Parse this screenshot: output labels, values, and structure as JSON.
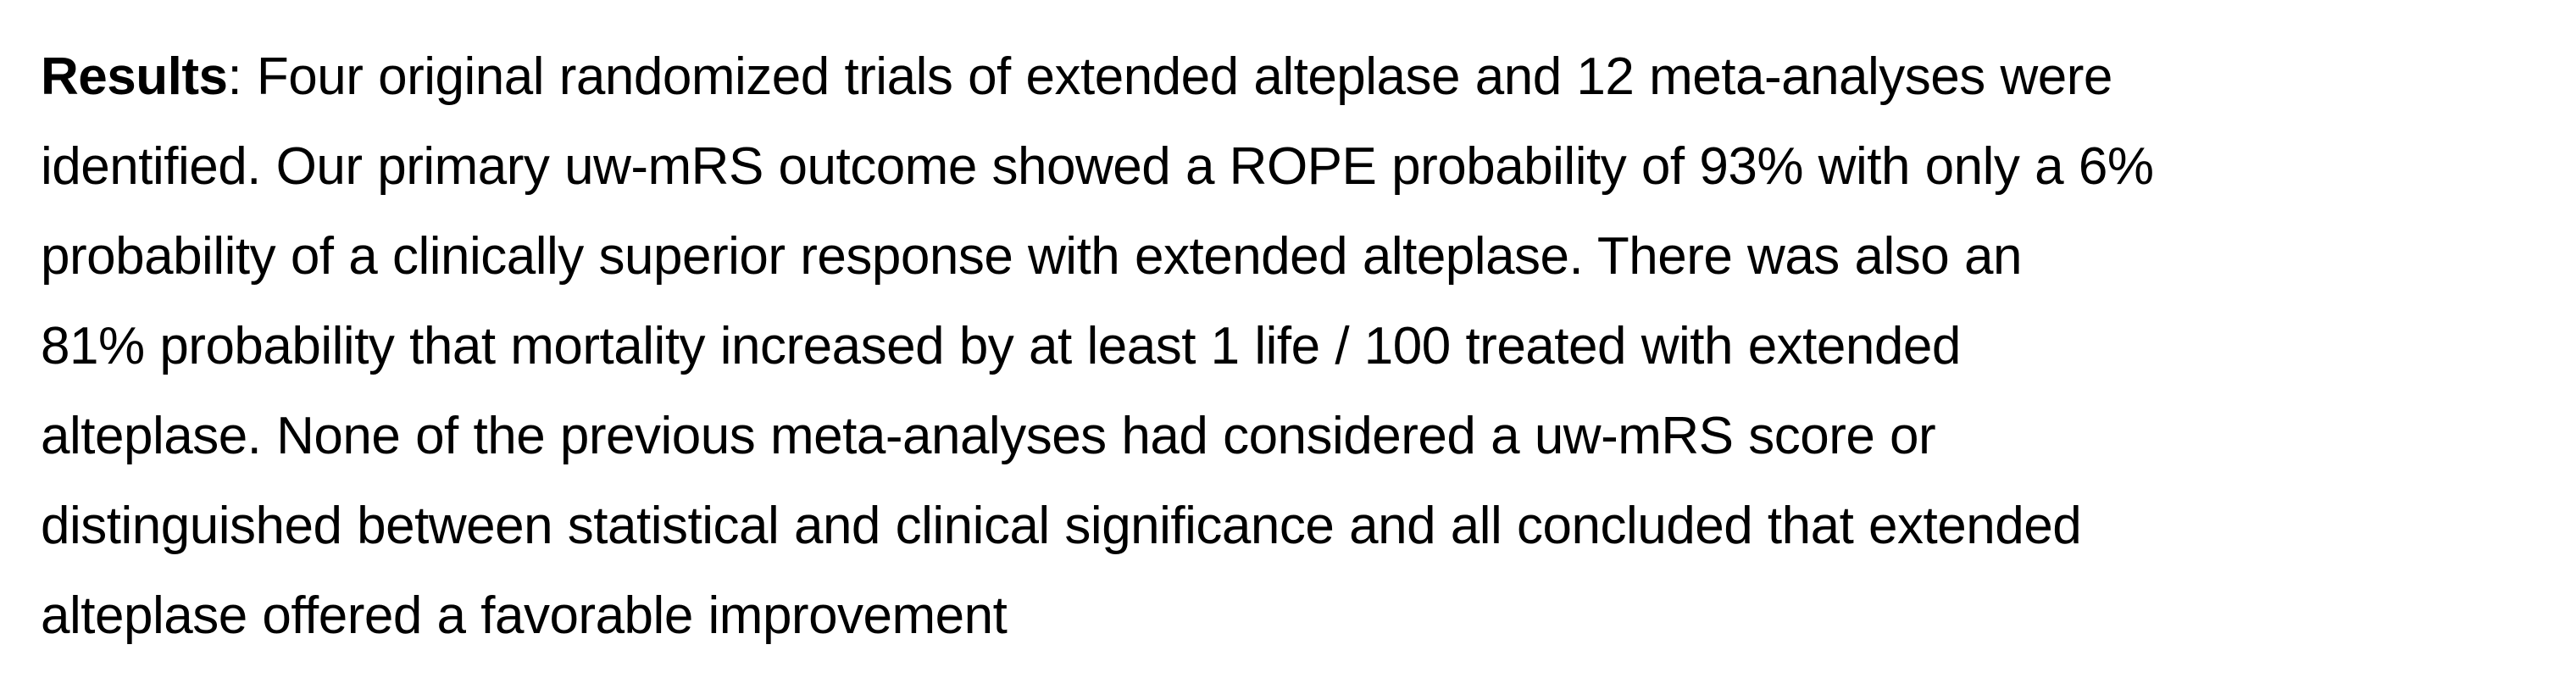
{
  "results": {
    "label": "Results",
    "separator": ":",
    "lines": [
      " Four original randomized trials of extended alteplase and 12 meta-analyses were",
      "identified. Our primary uw-mRS outcome showed a ROPE probability of 93% with only a 6%",
      "probability of a clinically superior response with extended alteplase. There was also an",
      "81% probability that mortality increased by at least 1 life / 100 treated with extended",
      "alteplase. None of the previous meta-analyses had considered a uw-mRS score or",
      "distinguished between statistical and clinical significance and all concluded that extended",
      "alteplase offered a favorable improvement"
    ]
  }
}
